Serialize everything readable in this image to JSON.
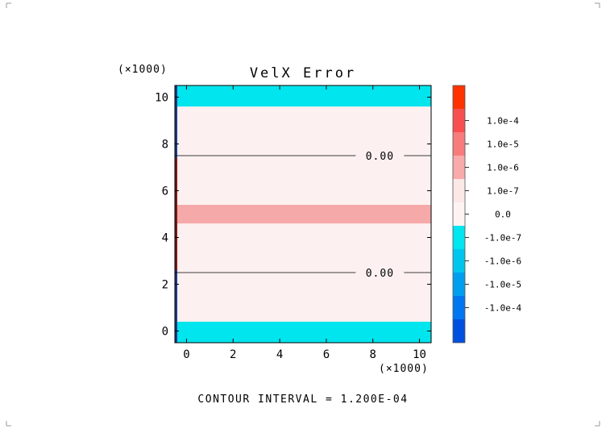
{
  "chart_data": {
    "type": "heatmap",
    "title": "VelX Error",
    "xlabel": "",
    "ylabel": "",
    "x_multiplier": "(×1000)",
    "y_multiplier": "(×1000)",
    "xlim": [
      -0.5,
      10.5
    ],
    "ylim": [
      -0.5,
      10.5
    ],
    "x_ticks": [
      "0",
      "2",
      "4",
      "6",
      "8",
      "10"
    ],
    "y_ticks": [
      "0",
      "2",
      "4",
      "6",
      "8",
      "10"
    ],
    "bands": [
      {
        "y0": -0.5,
        "y1": 0.4,
        "level": "-1.0e-7",
        "color": "#00e5ee"
      },
      {
        "y0": 0.4,
        "y1": 4.6,
        "level": "0.0",
        "color": "#fdf0f0"
      },
      {
        "y0": 4.6,
        "y1": 5.4,
        "level": "1.0e-7",
        "color": "#f5a9a9"
      },
      {
        "y0": 5.4,
        "y1": 9.6,
        "level": "0.0",
        "color": "#fdf0f0"
      },
      {
        "y0": 9.6,
        "y1": 10.5,
        "level": "-1.0e-7",
        "color": "#00e5ee"
      }
    ],
    "contours": [
      {
        "y": 2.5,
        "label": "0.00"
      },
      {
        "y": 7.5,
        "label": "0.00"
      }
    ],
    "colorbar": {
      "levels": [
        {
          "label": "",
          "color": "#ff3300"
        },
        {
          "label": "1.0e-4",
          "color": "#f65050"
        },
        {
          "label": "1.0e-5",
          "color": "#f77d7d"
        },
        {
          "label": "1.0e-6",
          "color": "#f9aaaa"
        },
        {
          "label": "1.0e-7",
          "color": "#fde8e8"
        },
        {
          "label": "0.0",
          "color": "#fdf3f3"
        },
        {
          "label": "-1.0e-7",
          "color": "#00e5ee"
        },
        {
          "label": "-1.0e-6",
          "color": "#00c6ee"
        },
        {
          "label": "-1.0e-5",
          "color": "#009fee"
        },
        {
          "label": "-1.0e-4",
          "color": "#0077ee"
        },
        {
          "label": "",
          "color": "#0050e0"
        }
      ]
    },
    "footer": "CONTOUR INTERVAL = 1.200E-04"
  }
}
